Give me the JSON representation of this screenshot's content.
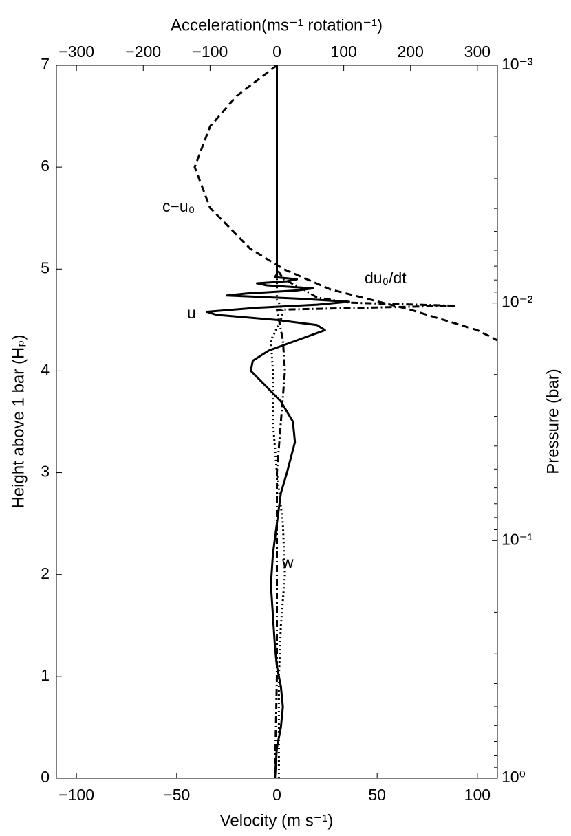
{
  "chart_data": {
    "type": "line",
    "x_label": "Velocity (m s⁻¹)",
    "x2_label": "Acceleration(ms⁻¹ rotation⁻¹)",
    "y_label": "Height above 1 bar (Hₚ)",
    "y2_label": "Pressure (bar)",
    "xlim": [
      -110,
      110
    ],
    "xticks": [
      {
        "value": -100,
        "label": "−100"
      },
      {
        "value": -50,
        "label": "−50"
      },
      0,
      50,
      100
    ],
    "x2lim": [
      -330,
      330
    ],
    "x2ticks": [
      {
        "value": -300,
        "label": "−300"
      },
      {
        "value": -200,
        "label": "−200"
      },
      {
        "value": -100,
        "label": "−100"
      },
      0,
      100,
      200,
      300
    ],
    "ylim": [
      0,
      7
    ],
    "yticks": [
      0,
      1,
      2,
      3,
      4,
      5,
      6,
      7
    ],
    "y2lim": [
      1,
      0.001
    ],
    "y2scale": "log",
    "y2ticks": [
      {
        "value": 1,
        "label": "10⁰"
      },
      {
        "value": 0.1,
        "label": "10⁻¹"
      },
      {
        "value": 0.01,
        "label": "10⁻²"
      },
      {
        "value": 0.001,
        "label": "10⁻³"
      }
    ],
    "y2minor_ticks": [
      0.9,
      0.8,
      0.7,
      0.6,
      0.5,
      0.4,
      0.3,
      0.2,
      0.09,
      0.08,
      0.07,
      0.06,
      0.05,
      0.04,
      0.03,
      0.02,
      0.009,
      0.008,
      0.007,
      0.006,
      0.005,
      0.004,
      0.003,
      0.002
    ],
    "series": [
      {
        "name": "u",
        "color": "#000000",
        "dash": "solid",
        "axis": "x",
        "y": [
          0,
          0.3,
          0.5,
          0.7,
          0.9,
          1.1,
          1.3,
          1.6,
          1.9,
          2.2,
          2.5,
          2.8,
          3.0,
          3.3,
          3.5,
          3.7,
          3.9,
          4.0,
          4.1,
          4.2,
          4.3,
          4.4,
          4.45,
          4.5,
          4.55,
          4.58,
          4.62,
          4.65,
          4.68,
          4.71,
          4.74,
          4.76,
          4.79,
          4.81,
          4.84,
          4.86,
          4.88,
          4.9,
          4.92,
          4.95,
          7
        ],
        "values": [
          -1,
          0,
          2,
          3,
          2,
          0,
          -1,
          -2,
          -3,
          -2,
          0,
          2,
          5,
          9,
          8,
          2,
          -8,
          -13,
          -12,
          -4,
          10,
          24,
          20,
          0,
          -30,
          -35,
          -10,
          20,
          36,
          10,
          -25,
          -15,
          10,
          18,
          -5,
          -10,
          5,
          10,
          -1,
          0,
          0
        ]
      },
      {
        "name": "w",
        "color": "#000000",
        "dash": "dotted",
        "axis": "x",
        "y": [
          0,
          1,
          1.5,
          2.0,
          2.5,
          3.0,
          3.5,
          4.0,
          4.3,
          4.5,
          4.6,
          4.7,
          5,
          7
        ],
        "values": [
          1,
          1,
          2,
          4,
          3,
          0,
          -2,
          -2,
          -3,
          2,
          3,
          0,
          0,
          0
        ]
      },
      {
        "name": "du₀/dt",
        "color": "#000000",
        "dash": "dashdot",
        "axis": "x2",
        "y": [
          0,
          1,
          2,
          3,
          3.5,
          4,
          4.3,
          4.5,
          4.6,
          4.64,
          4.67,
          4.72,
          4.8,
          4.9,
          5,
          7
        ],
        "values": [
          -3,
          0,
          0,
          0,
          6,
          12,
          9,
          3,
          0,
          265,
          110,
          60,
          40,
          10,
          0,
          0
        ]
      },
      {
        "name": "c−u₀",
        "color": "#000000",
        "dash": "dashed",
        "axis": "x2",
        "y": [
          7,
          6.7,
          6.4,
          6.0,
          5.6,
          5.2,
          5.0,
          4.8,
          4.6,
          4.4,
          4.3
        ],
        "values": [
          0,
          -60,
          -100,
          -123,
          -100,
          -40,
          10,
          80,
          200,
          300,
          330
        ]
      }
    ]
  }
}
